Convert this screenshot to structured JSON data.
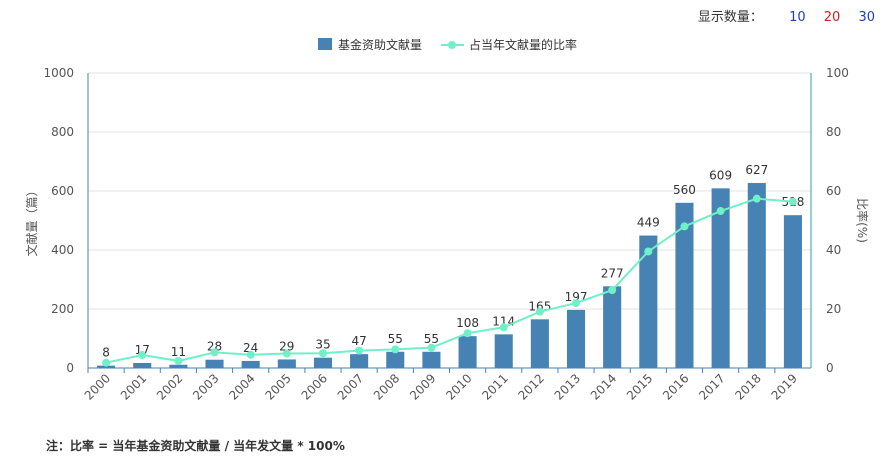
{
  "display_count": {
    "label": "显示数量：",
    "options": [
      "10",
      "20",
      "30"
    ]
  },
  "footnote": "注：比率 = 当年基金资助文献量 / 当年发文量 * 100%",
  "chart_data": {
    "type": "bar",
    "categories": [
      "2000",
      "2001",
      "2002",
      "2003",
      "2004",
      "2005",
      "2006",
      "2007",
      "2008",
      "2009",
      "2010",
      "2011",
      "2012",
      "2013",
      "2014",
      "2015",
      "2016",
      "2017",
      "2018",
      "2019"
    ],
    "series": [
      {
        "name": "基金资助文献量",
        "type": "bar",
        "axis": "left",
        "color": "#4682b4",
        "values": [
          8,
          17,
          11,
          28,
          24,
          29,
          35,
          47,
          55,
          55,
          108,
          114,
          165,
          197,
          277,
          449,
          560,
          609,
          627,
          518
        ]
      },
      {
        "name": "占当年文献量的比率",
        "type": "line",
        "axis": "right",
        "color": "#6ff0c8",
        "values": [
          1.8,
          4.4,
          2.4,
          5.3,
          4.5,
          4.9,
          5.0,
          5.9,
          6.3,
          6.9,
          11.8,
          13.8,
          19.1,
          22.0,
          26.4,
          39.5,
          48.0,
          53.2,
          57.4,
          56.4
        ]
      }
    ],
    "ylabel": "文献量（篇）",
    "y2label": "比率(%)",
    "ylim": [
      0,
      1000
    ],
    "y2lim": [
      0,
      100
    ],
    "yticks": [
      "0",
      "200",
      "400",
      "600",
      "800",
      "1000"
    ],
    "y2ticks": [
      "0",
      "20",
      "40",
      "60",
      "80",
      "100"
    ],
    "grid": true,
    "legend_position": "top-center"
  }
}
